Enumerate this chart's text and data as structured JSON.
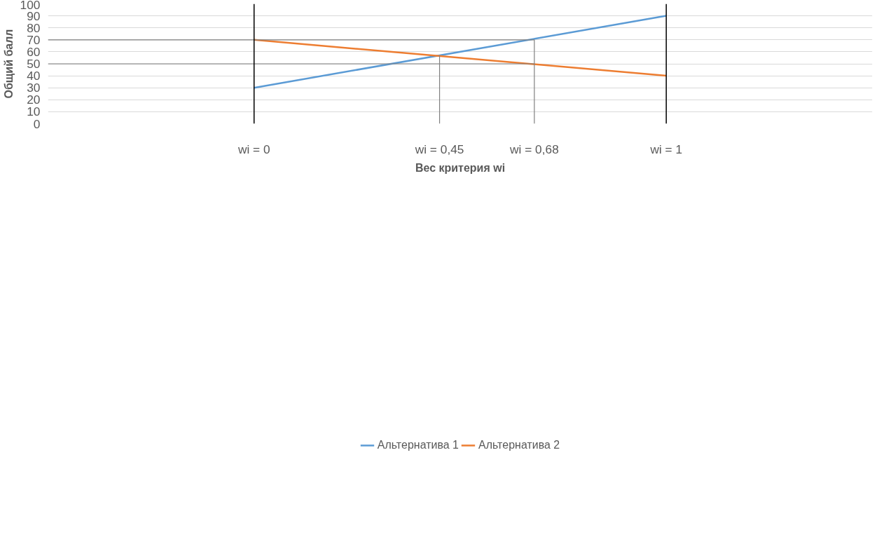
{
  "chart_data": {
    "type": "line",
    "xlabel": "Вес критерия wi",
    "ylabel": "Общий балл",
    "xlim": [
      -0.5,
      1.5
    ],
    "xticks": [
      {
        "value": 0,
        "label": "wi = 0"
      },
      {
        "value": 0.45,
        "label": "wi = 0,45"
      },
      {
        "value": 0.68,
        "label": "wi = 0,68"
      },
      {
        "value": 1,
        "label": "wi = 1"
      }
    ],
    "ylim": [
      0,
      100
    ],
    "yticks": [
      0,
      10,
      20,
      30,
      40,
      50,
      60,
      70,
      80,
      90,
      100
    ],
    "grid": "y",
    "legend": "bottom",
    "line_style": "solid",
    "marker": "none",
    "ref_lines": [
      {
        "axis": "x",
        "value": 0,
        "color": "#000000"
      },
      {
        "axis": "x",
        "value": 1,
        "color": "#000000"
      }
    ],
    "series": [
      {
        "name": "Альтернатива 1",
        "color": "#5b9bd5",
        "x": [
          0,
          1
        ],
        "values": [
          30,
          90
        ]
      },
      {
        "name": "Альтернатива 2",
        "color": "#ed7d31",
        "x": [
          0,
          1
        ],
        "values": [
          70,
          40
        ]
      },
      {
        "color": "#808080",
        "x": [
          -0.5,
          0.68,
          0.68
        ],
        "values": [
          70,
          70,
          0
        ]
      },
      {
        "color": "#808080",
        "x": [
          -0.5,
          0.68
        ],
        "values": [
          50,
          50
        ]
      },
      {
        "color": "#808080",
        "x": [
          0.45,
          0.45
        ],
        "values": [
          0,
          56.7
        ]
      }
    ]
  }
}
